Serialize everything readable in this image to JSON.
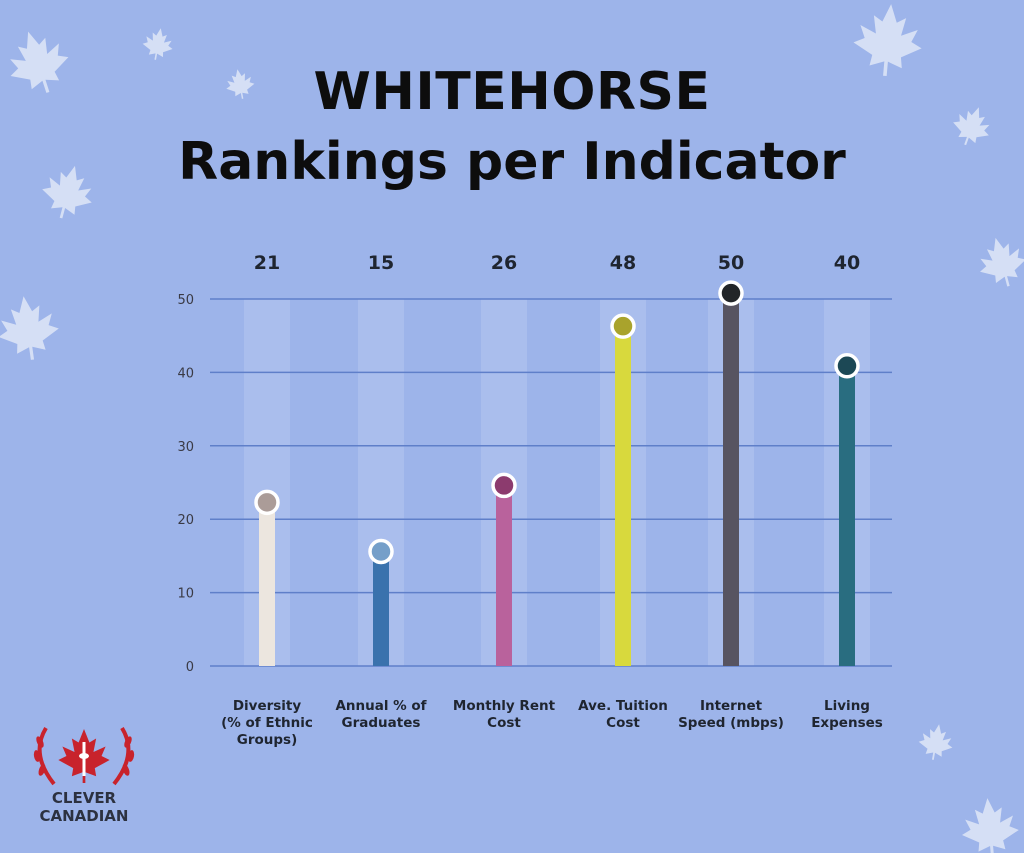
{
  "header": {
    "title_line1": "WHITEHORSE",
    "title_line2": "Rankings per Indicator"
  },
  "logo": {
    "line1": "CLEVER",
    "line2": "CANADIAN",
    "icon": "maple-leaf-wreath-icon",
    "color": "#c8232c"
  },
  "decor": {
    "icon": "maple-leaf-icon",
    "color": "#dfe6f7"
  },
  "chart_data": {
    "type": "bar",
    "categories": [
      [
        "Diversity",
        "(% of Ethnic",
        "Groups)"
      ],
      [
        "Annual % of",
        "Graduates"
      ],
      [
        "Monthly Rent",
        "Cost"
      ],
      [
        "Ave. Tuition",
        "Cost"
      ],
      [
        "Internet",
        "Speed (mbps)"
      ],
      [
        "Living",
        "Expenses"
      ]
    ],
    "values": [
      21,
      15,
      26,
      48,
      50,
      40
    ],
    "marker_values": [
      22.3,
      15.6,
      24.6,
      46.3,
      50.8,
      40.9
    ],
    "value_labels": [
      "21",
      "15",
      "26",
      "48",
      "50",
      "40"
    ],
    "bar_colors": [
      "#ece6df",
      "#3a72ad",
      "#b9629c",
      "#d8d93d",
      "#575461",
      "#296d80"
    ],
    "marker_colors": [
      "#ab9c98",
      "#759fc9",
      "#8c3b6e",
      "#a9a32c",
      "#222528",
      "#1c4855"
    ],
    "yticks": [
      0,
      10,
      20,
      30,
      40,
      50
    ],
    "ylim": [
      0,
      50
    ],
    "grid": true,
    "grid_color": "#5f7fc9",
    "xlabel": "",
    "ylabel": ""
  }
}
